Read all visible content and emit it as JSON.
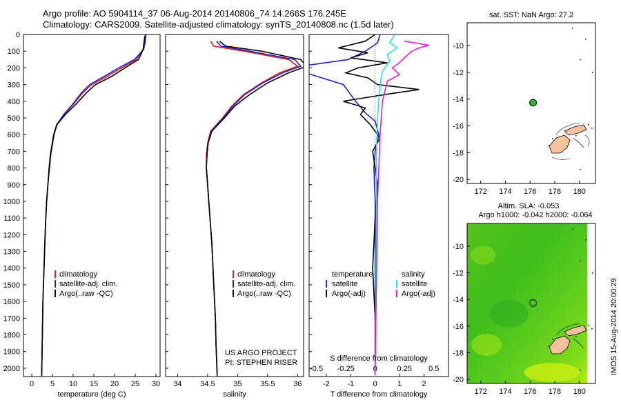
{
  "header": {
    "line1": "Argo profile: AO 5904114_37 06-Aug-2014 20140806_74 14.266S 176.245E",
    "line2": "Climatology: CARS2009. Satellite-adjusted climatology: synTS_20140808.nc (1.5d later)"
  },
  "colors": {
    "climatology": "#e41a1c",
    "satellite": "#1f1fd1",
    "argo": "#000000",
    "sat_salinity": "#22e0e8",
    "argo_salinity": "#e020e0",
    "profile_marker": "#2fb52f",
    "land": "#f5c29c"
  },
  "chart_data": [
    {
      "type": "line",
      "title": "",
      "xlabel": "temperature (deg C)",
      "ylabel": "",
      "xlim": [
        -2,
        31
      ],
      "ylim": [
        2050,
        0
      ],
      "x_ticks": [
        "0",
        "5",
        "10",
        "15",
        "20",
        "25",
        "30"
      ],
      "y_ticks": [
        "0",
        "100",
        "200",
        "300",
        "400",
        "500",
        "600",
        "700",
        "800",
        "900",
        "1000",
        "1100",
        "1200",
        "1300",
        "1400",
        "1500",
        "1600",
        "1700",
        "1800",
        "1900",
        "2000"
      ],
      "legend": [
        "climatology",
        "satellite-adj. clim.",
        "Argo(..raw -QC)"
      ],
      "series": [
        {
          "name": "climatology",
          "x": [
            27.4,
            27.2,
            26.9,
            25.3,
            21.7,
            18.3,
            14.5,
            12.3,
            10.0,
            7.8,
            6.0,
            5.3,
            4.9,
            4.5,
            4.2,
            3.9,
            3.6,
            3.3,
            3.1,
            2.9,
            2.7,
            2.6,
            2.5,
            2.4
          ],
          "y": [
            0,
            50,
            90,
            150,
            200,
            250,
            300,
            350,
            420,
            480,
            540,
            600,
            660,
            720,
            800,
            900,
            1000,
            1150,
            1300,
            1450,
            1600,
            1750,
            1900,
            2050
          ]
        },
        {
          "name": "satellite-adj. clim.",
          "x": [
            27.6,
            27.4,
            27.0,
            24.8,
            21.0,
            17.6,
            14.0,
            12.0,
            9.8,
            7.7,
            6.1,
            5.4,
            5.0,
            4.6,
            4.3,
            3.9,
            3.6,
            3.3,
            3.1,
            2.9,
            2.7,
            2.6,
            2.5,
            2.4
          ],
          "y": [
            0,
            50,
            90,
            150,
            200,
            250,
            300,
            350,
            420,
            480,
            540,
            600,
            660,
            720,
            800,
            900,
            1000,
            1150,
            1300,
            1450,
            1600,
            1750,
            1900,
            2050
          ]
        },
        {
          "name": "Argo(..raw -QC)",
          "x": [
            27.3,
            27.1,
            26.9,
            25.8,
            22.5,
            19.4,
            15.4,
            13.2,
            10.6,
            8.1,
            6.1,
            5.3,
            4.9,
            4.5,
            4.2,
            3.9,
            3.6,
            3.3,
            3.1,
            2.9,
            2.7,
            2.6,
            2.5,
            2.4
          ],
          "y": [
            10,
            50,
            90,
            150,
            200,
            250,
            300,
            350,
            420,
            480,
            540,
            600,
            660,
            720,
            800,
            900,
            1000,
            1150,
            1300,
            1450,
            1600,
            1750,
            1900,
            2040
          ]
        }
      ]
    },
    {
      "type": "line",
      "title": "",
      "xlabel": "salinity",
      "ylabel": "",
      "xlim": [
        33.8,
        36.1
      ],
      "ylim": [
        2050,
        0
      ],
      "x_ticks": [
        "34",
        "34.5",
        "35",
        "35.5",
        "36"
      ],
      "legend": [
        "climatology",
        "satellite-adj. clim.",
        "Argo(..raw -QC)"
      ],
      "annotations": [
        "US ARGO PROJECT",
        "PI: STEPHEN RISER"
      ],
      "series": [
        {
          "name": "climatology",
          "x": [
            34.55,
            34.6,
            35.1,
            35.85,
            36.0,
            35.7,
            35.4,
            35.1,
            34.9,
            34.75,
            34.55,
            34.5,
            34.48,
            34.48,
            34.5,
            34.52,
            34.54,
            34.57,
            34.59,
            34.61,
            34.63,
            34.64,
            34.66
          ],
          "y": [
            40,
            70,
            100,
            150,
            190,
            230,
            290,
            360,
            430,
            500,
            580,
            650,
            720,
            800,
            900,
            1000,
            1100,
            1250,
            1400,
            1550,
            1700,
            1850,
            2050
          ]
        },
        {
          "name": "satellite-adj. clim.",
          "x": [
            34.65,
            34.72,
            35.2,
            35.95,
            36.05,
            35.75,
            35.42,
            35.12,
            34.92,
            34.76,
            34.56,
            34.51,
            34.49,
            34.48,
            34.5,
            34.52,
            34.54,
            34.57,
            34.59,
            34.61,
            34.63,
            34.64,
            34.66
          ],
          "y": [
            40,
            70,
            100,
            150,
            190,
            230,
            290,
            360,
            430,
            500,
            580,
            650,
            720,
            800,
            900,
            1000,
            1100,
            1250,
            1400,
            1550,
            1700,
            1850,
            2050
          ]
        },
        {
          "name": "Argo(..raw -QC)",
          "x": [
            34.7,
            34.8,
            35.4,
            36.05,
            36.15,
            35.85,
            35.5,
            35.2,
            34.95,
            34.78,
            34.57,
            34.51,
            34.49,
            34.48,
            34.5,
            34.52,
            34.54,
            34.57,
            34.59,
            34.61,
            34.63,
            34.64,
            34.66
          ],
          "y": [
            40,
            70,
            100,
            150,
            190,
            230,
            290,
            360,
            430,
            500,
            580,
            650,
            720,
            800,
            900,
            1000,
            1100,
            1250,
            1400,
            1550,
            1700,
            1850,
            2040
          ]
        }
      ]
    },
    {
      "type": "line",
      "title": "",
      "xlabel": "T difference from climatology",
      "x2label": "S difference from climatology",
      "ylabel": "",
      "xlim": [
        -2.7,
        3.0
      ],
      "ylim": [
        2050,
        0
      ],
      "x_ticks": [
        "-2",
        "-1",
        "0",
        "1",
        "2"
      ],
      "x2_ticks": [
        "-0.5",
        "-0.25",
        "0",
        "0.25",
        "0.5"
      ],
      "legend_temperature": {
        "title": "temperature",
        "items": [
          "satellite",
          "Argo(-adj)"
        ]
      },
      "legend_salinity": {
        "title": "salinity",
        "items": [
          "satellite",
          "Argo(-adj)"
        ]
      },
      "series": [
        {
          "name": "satellite",
          "x": [
            0.2,
            0.1,
            -0.4,
            -1.1,
            -3.5,
            -1.3,
            -0.8,
            -0.4,
            0.0,
            0.15,
            0.0,
            -0.05,
            0.0,
            0.0,
            0.0,
            0.0
          ],
          "y": [
            0,
            50,
            100,
            150,
            200,
            300,
            400,
            470,
            520,
            600,
            700,
            800,
            1000,
            1300,
            1700,
            2050
          ]
        },
        {
          "name": "Argo(-adj)",
          "x": [
            0.0,
            -0.4,
            -1.5,
            -0.3,
            -1.0,
            0.5,
            -0.7,
            -1.2,
            -0.3,
            0.1,
            1.8,
            0.4,
            -1.3,
            -0.4,
            -0.6,
            -0.2,
            0.2,
            -0.1,
            0.1,
            0.0,
            -0.1,
            0.0,
            0.0
          ],
          "y": [
            0,
            40,
            80,
            110,
            140,
            170,
            200,
            230,
            260,
            300,
            330,
            360,
            400,
            440,
            480,
            540,
            620,
            700,
            900,
            1100,
            1400,
            1700,
            2040
          ]
        },
        {
          "name": "satellite (salinity)",
          "x": [
            0.8,
            0.6,
            0.9,
            0.5,
            0.6,
            0.3,
            0.2,
            0.15,
            0.1,
            0.05,
            0.05,
            0.0
          ],
          "y": [
            0,
            50,
            80,
            120,
            160,
            220,
            300,
            400,
            500,
            700,
            1000,
            2050
          ]
        },
        {
          "name": "Argo(-adj) (salinity)",
          "x": [
            1.2,
            2.2,
            1.8,
            1.5,
            1.2,
            0.9,
            0.7,
            1.0,
            0.5,
            0.3,
            0.2,
            0.1,
            0.0
          ],
          "y": [
            40,
            65,
            80,
            100,
            140,
            180,
            200,
            240,
            280,
            400,
            600,
            1000,
            2040
          ]
        }
      ]
    },
    {
      "type": "scatter",
      "title": "sat. SST: NaN  Argo: 27.2",
      "xlim": [
        170.9,
        181.3
      ],
      "ylim": [
        -20.3,
        -8.3
      ],
      "x_ticks": [
        "172",
        "174",
        "176",
        "178",
        "180"
      ],
      "y_ticks": [
        "-10",
        "-12",
        "-14",
        "-16",
        "-18",
        "-20"
      ],
      "points": [
        {
          "x": 176.245,
          "y": -14.266,
          "label": "Argo profile"
        }
      ]
    },
    {
      "type": "heatmap",
      "title": "Altim. SLA: -0.053",
      "subtitle": "Argo h1000: -0.042 h2000: -0.064",
      "xlim": [
        170.9,
        181.3
      ],
      "ylim": [
        -20.3,
        -8.3
      ],
      "x_ticks": [
        "172",
        "174",
        "176",
        "178",
        "180"
      ],
      "y_ticks": [
        "-10",
        "-12",
        "-14",
        "-16",
        "-18",
        "-20"
      ],
      "points": [
        {
          "x": 176.245,
          "y": -14.266,
          "label": "Argo profile"
        }
      ]
    }
  ],
  "footer_vertical": "IMOS 15-Aug-2014 20:00:29"
}
